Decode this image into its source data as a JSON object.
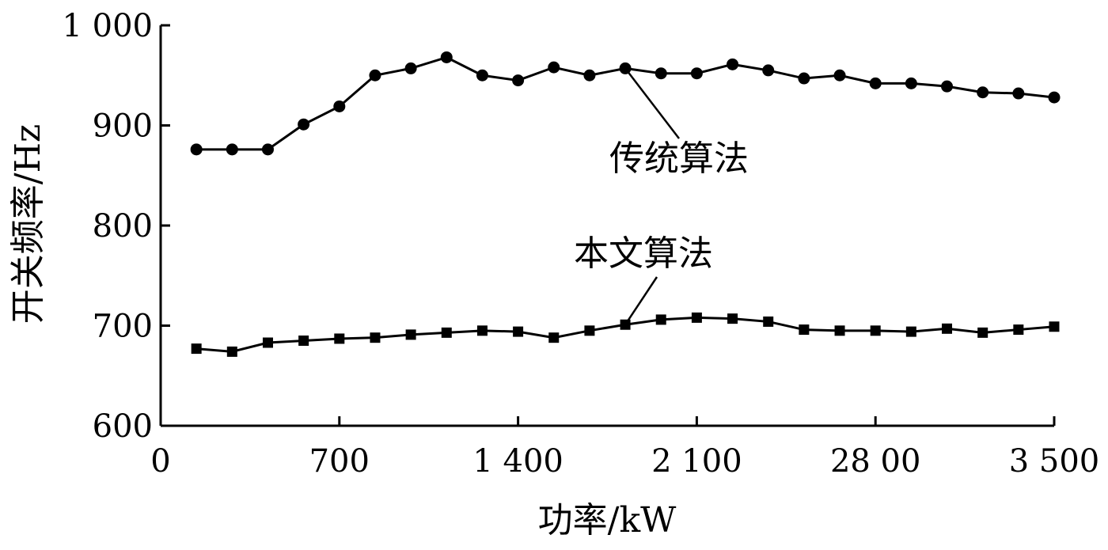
{
  "chart_data": {
    "type": "line",
    "xlabel": "功率/kW",
    "ylabel": "开关频率/Hz",
    "xlim": [
      0,
      3500
    ],
    "ylim": [
      600,
      1000
    ],
    "x_ticks": [
      0,
      700,
      1400,
      2100,
      2800,
      3500
    ],
    "x_tick_labels": [
      "0",
      "700",
      "1 400",
      "2 100",
      "28 00",
      "3 500"
    ],
    "y_ticks": [
      600,
      700,
      800,
      900,
      1000
    ],
    "y_tick_labels": [
      "600",
      "700",
      "800",
      "900",
      "1 000"
    ],
    "grid": false,
    "x": [
      140,
      280,
      420,
      560,
      700,
      840,
      980,
      1120,
      1260,
      1400,
      1540,
      1680,
      1820,
      1960,
      2100,
      2240,
      2380,
      2520,
      2660,
      2800,
      2940,
      3080,
      3220,
      3360,
      3500
    ],
    "series": [
      {
        "name": "传统算法",
        "marker": "circle",
        "values": [
          876,
          876,
          876,
          901,
          919,
          950,
          957,
          968,
          950,
          945,
          958,
          950,
          957,
          952,
          952,
          961,
          955,
          947,
          950,
          942,
          942,
          939,
          933,
          932,
          928
        ]
      },
      {
        "name": "本文算法",
        "marker": "square",
        "values": [
          677,
          674,
          683,
          685,
          687,
          688,
          691,
          693,
          695,
          694,
          688,
          695,
          701,
          706,
          708,
          707,
          704,
          696,
          695,
          695,
          694,
          697,
          693,
          696,
          699
        ]
      }
    ],
    "annotations": [
      {
        "series": 0,
        "text": "传统算法",
        "point_index": 12
      },
      {
        "series": 1,
        "text": "本文算法",
        "point_index": 12
      }
    ]
  }
}
